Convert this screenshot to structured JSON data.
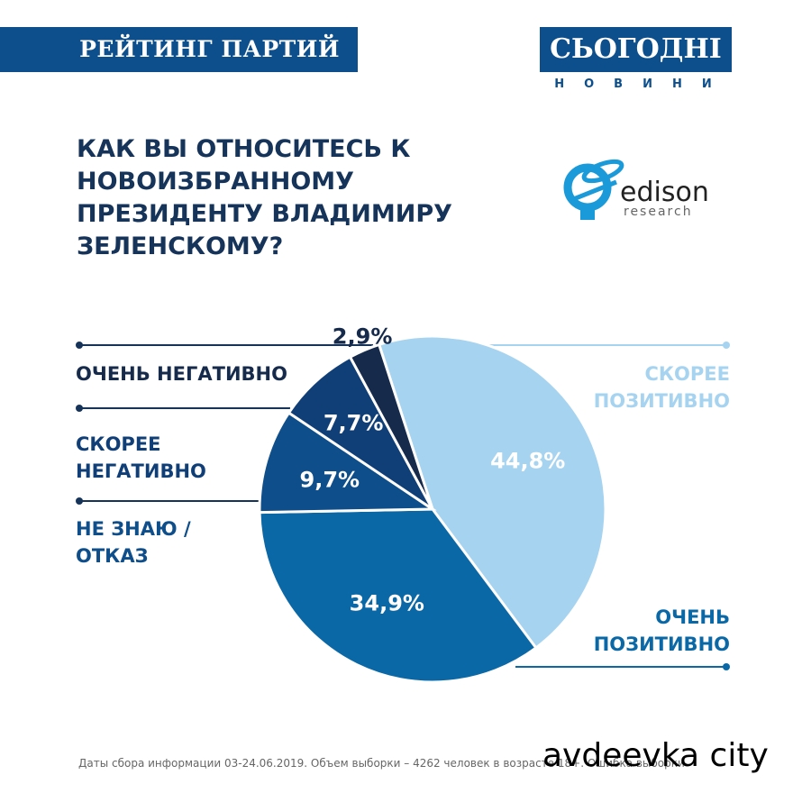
{
  "header": {
    "title": "РЕЙТИНГ ПАРТИЙ",
    "logo": "СЬОГОДНІ",
    "logo_sub": "НОВИНИ"
  },
  "question": "КАК ВЫ ОТНОСИТЕСЬ К НОВОИЗБРАННОМУ ПРЕЗИДЕНТУ ВЛАДИМИРУ ЗЕЛЕНСКОМУ?",
  "source_logo": {
    "name": "edison",
    "sub": "research"
  },
  "footer": "Даты сбора информации 03-24.06.2019. Объем выборки – 4262 человек в возрасте 18+. Ошибка выборки",
  "watermark": "avdeevka city",
  "chart_data": {
    "type": "pie",
    "start_angle_deg": -18,
    "direction": "clockwise",
    "slices": [
      {
        "label": "СКОРЕЕ ПОЗИТИВНО",
        "value": 44.8,
        "display": "44,8%",
        "color": "#a6d3f0"
      },
      {
        "label": "ОЧЕНЬ ПОЗИТИВНО",
        "value": 34.9,
        "display": "34,9%",
        "color": "#0b68a6"
      },
      {
        "label": "НЕ ЗНАЮ / ОТКАЗ",
        "value": 9.7,
        "display": "9,7%",
        "color": "#0e4e8a"
      },
      {
        "label": "СКОРЕЕ НЕГАТИВНО",
        "value": 7.7,
        "display": "7,7%",
        "color": "#103f77"
      },
      {
        "label": "ОЧЕНЬ НЕГАТИВНО",
        "value": 2.9,
        "display": "2,9%",
        "color": "#162a4b"
      }
    ]
  }
}
